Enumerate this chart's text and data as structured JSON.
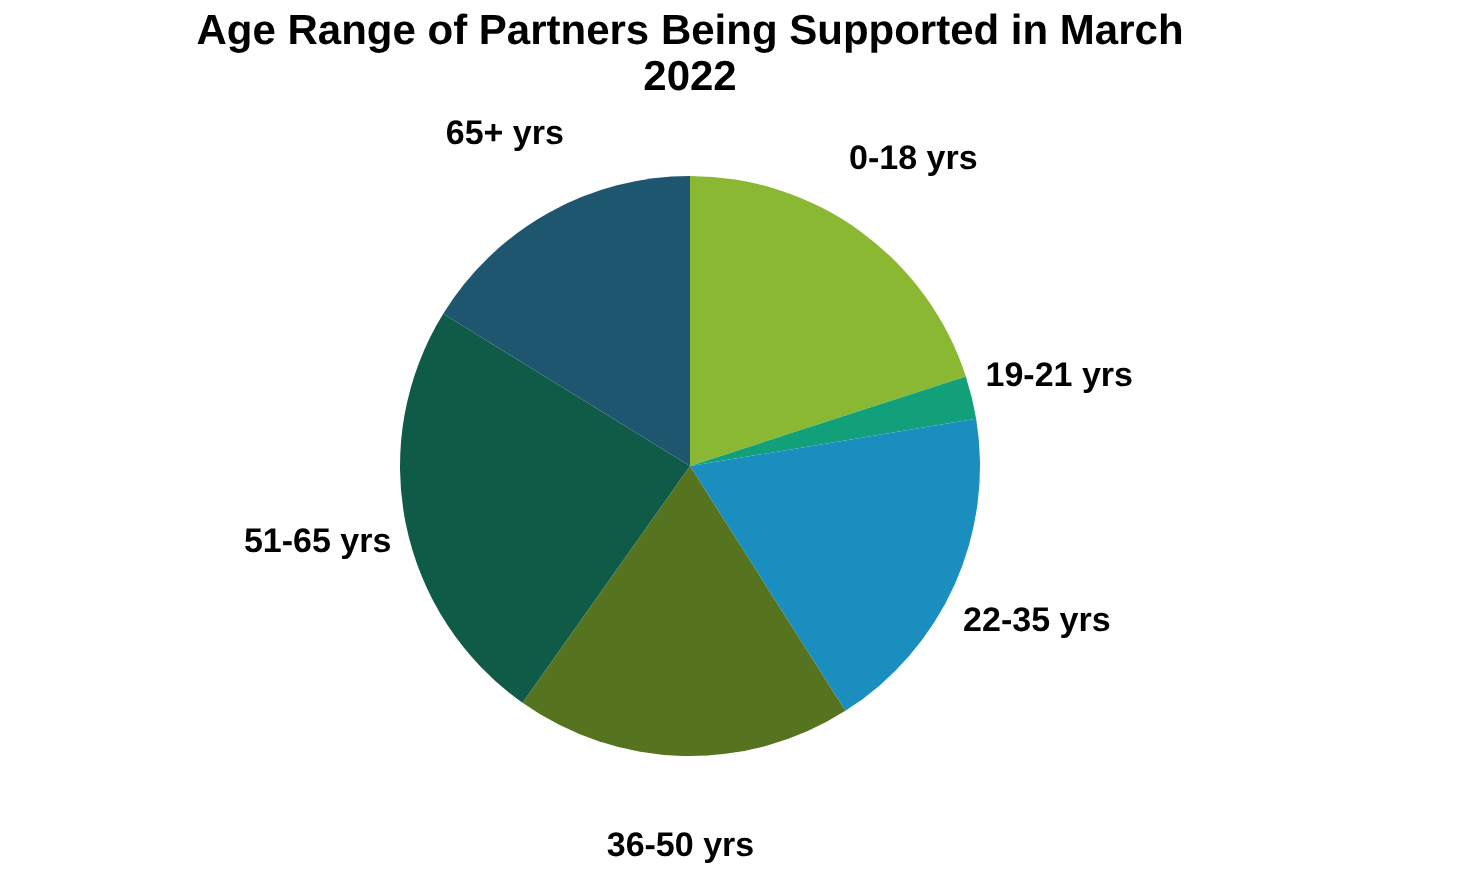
{
  "chart_data": {
    "type": "pie",
    "title": "Age Range of Partners Being Supported in March 2022",
    "categories": [
      "0-18 yrs",
      "19-21 yrs",
      "22-35 yrs",
      "36-50 yrs",
      "51-65 yrs",
      "65+ yrs"
    ],
    "values": [
      20,
      2.4,
      18.6,
      18.8,
      24,
      16.2
    ],
    "colors": [
      "#8ab832",
      "#12a07a",
      "#1a8fbf",
      "#56731f",
      "#0f5b48",
      "#1e5670"
    ],
    "legend": false
  }
}
